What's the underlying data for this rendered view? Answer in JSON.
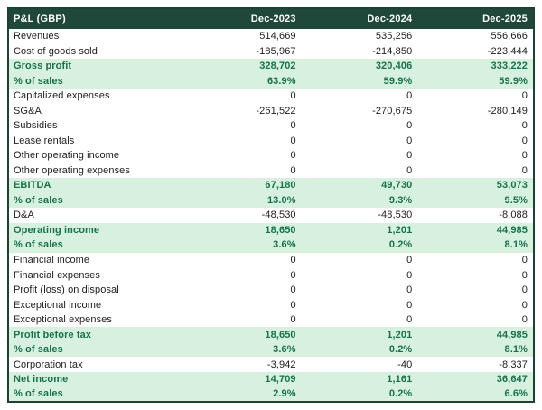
{
  "title": "P&L (GBP)",
  "columns": [
    "Dec-2023",
    "Dec-2024",
    "Dec-2025"
  ],
  "rows": [
    {
      "label": "Revenues",
      "values": [
        "514,669",
        "535,256",
        "556,666"
      ],
      "highlight": false
    },
    {
      "label": "Cost of goods sold",
      "values": [
        "-185,967",
        "-214,850",
        "-223,444"
      ],
      "highlight": false
    },
    {
      "label": "Gross profit",
      "values": [
        "328,702",
        "320,406",
        "333,222"
      ],
      "highlight": true
    },
    {
      "label": "% of sales",
      "values": [
        "63.9%",
        "59.9%",
        "59.9%"
      ],
      "highlight": true
    },
    {
      "label": "Capitalized expenses",
      "values": [
        "0",
        "0",
        "0"
      ],
      "highlight": false
    },
    {
      "label": "SG&A",
      "values": [
        "-261,522",
        "-270,675",
        "-280,149"
      ],
      "highlight": false
    },
    {
      "label": "Subsidies",
      "values": [
        "0",
        "0",
        "0"
      ],
      "highlight": false
    },
    {
      "label": "Lease rentals",
      "values": [
        "0",
        "0",
        "0"
      ],
      "highlight": false
    },
    {
      "label": "Other operating income",
      "values": [
        "0",
        "0",
        "0"
      ],
      "highlight": false
    },
    {
      "label": "Other operating expenses",
      "values": [
        "0",
        "0",
        "0"
      ],
      "highlight": false
    },
    {
      "label": "EBITDA",
      "values": [
        "67,180",
        "49,730",
        "53,073"
      ],
      "highlight": true
    },
    {
      "label": "% of sales",
      "values": [
        "13.0%",
        "9.3%",
        "9.5%"
      ],
      "highlight": true
    },
    {
      "label": "D&A",
      "values": [
        "-48,530",
        "-48,530",
        "-8,088"
      ],
      "highlight": false
    },
    {
      "label": "Operating income",
      "values": [
        "18,650",
        "1,201",
        "44,985"
      ],
      "highlight": true
    },
    {
      "label": "% of sales",
      "values": [
        "3.6%",
        "0.2%",
        "8.1%"
      ],
      "highlight": true
    },
    {
      "label": "Financial income",
      "values": [
        "0",
        "0",
        "0"
      ],
      "highlight": false
    },
    {
      "label": "Financial expenses",
      "values": [
        "0",
        "0",
        "0"
      ],
      "highlight": false
    },
    {
      "label": "Profit (loss) on disposal",
      "values": [
        "0",
        "0",
        "0"
      ],
      "highlight": false
    },
    {
      "label": "Exceptional income",
      "values": [
        "0",
        "0",
        "0"
      ],
      "highlight": false
    },
    {
      "label": "Exceptional expenses",
      "values": [
        "0",
        "0",
        "0"
      ],
      "highlight": false
    },
    {
      "label": "Profit before tax",
      "values": [
        "18,650",
        "1,201",
        "44,985"
      ],
      "highlight": true
    },
    {
      "label": "% of sales",
      "values": [
        "3.6%",
        "0.2%",
        "8.1%"
      ],
      "highlight": true
    },
    {
      "label": "Corporation tax",
      "values": [
        "-3,942",
        "-40",
        "-8,337"
      ],
      "highlight": false
    },
    {
      "label": "Net income",
      "values": [
        "14,709",
        "1,161",
        "36,647"
      ],
      "highlight": true
    },
    {
      "label": "% of sales",
      "values": [
        "2.9%",
        "0.2%",
        "6.6%"
      ],
      "highlight": true
    }
  ],
  "colors": {
    "header_bg": "#20483A",
    "header_text": "#FFFFFF",
    "highlight_bg": "#D8F1DF",
    "highlight_text": "#16714D",
    "border": "#1C4135",
    "row_text": "#1D1D1D",
    "page_bg": "#FFFFFF"
  },
  "chart_data": {
    "type": "table",
    "title": "P&L (GBP)",
    "columns": [
      "Dec-2023",
      "Dec-2024",
      "Dec-2025"
    ],
    "series": [
      {
        "name": "Revenues",
        "values": [
          514669,
          535256,
          556666
        ]
      },
      {
        "name": "Cost of goods sold",
        "values": [
          -185967,
          -214850,
          -223444
        ]
      },
      {
        "name": "Gross profit",
        "values": [
          328702,
          320406,
          333222
        ]
      },
      {
        "name": "Gross profit % of sales",
        "values": [
          63.9,
          59.9,
          59.9
        ]
      },
      {
        "name": "Capitalized expenses",
        "values": [
          0,
          0,
          0
        ]
      },
      {
        "name": "SG&A",
        "values": [
          -261522,
          -270675,
          -280149
        ]
      },
      {
        "name": "Subsidies",
        "values": [
          0,
          0,
          0
        ]
      },
      {
        "name": "Lease rentals",
        "values": [
          0,
          0,
          0
        ]
      },
      {
        "name": "Other operating income",
        "values": [
          0,
          0,
          0
        ]
      },
      {
        "name": "Other operating expenses",
        "values": [
          0,
          0,
          0
        ]
      },
      {
        "name": "EBITDA",
        "values": [
          67180,
          49730,
          53073
        ]
      },
      {
        "name": "EBITDA % of sales",
        "values": [
          13.0,
          9.3,
          9.5
        ]
      },
      {
        "name": "D&A",
        "values": [
          -48530,
          -48530,
          -8088
        ]
      },
      {
        "name": "Operating income",
        "values": [
          18650,
          1201,
          44985
        ]
      },
      {
        "name": "Operating income % of sales",
        "values": [
          3.6,
          0.2,
          8.1
        ]
      },
      {
        "name": "Financial income",
        "values": [
          0,
          0,
          0
        ]
      },
      {
        "name": "Financial expenses",
        "values": [
          0,
          0,
          0
        ]
      },
      {
        "name": "Profit (loss) on disposal",
        "values": [
          0,
          0,
          0
        ]
      },
      {
        "name": "Exceptional income",
        "values": [
          0,
          0,
          0
        ]
      },
      {
        "name": "Exceptional expenses",
        "values": [
          0,
          0,
          0
        ]
      },
      {
        "name": "Profit before tax",
        "values": [
          18650,
          1201,
          44985
        ]
      },
      {
        "name": "Profit before tax % of sales",
        "values": [
          3.6,
          0.2,
          8.1
        ]
      },
      {
        "name": "Corporation tax",
        "values": [
          -3942,
          -40,
          -8337
        ]
      },
      {
        "name": "Net income",
        "values": [
          14709,
          1161,
          36647
        ]
      },
      {
        "name": "Net income % of sales",
        "values": [
          2.9,
          0.2,
          6.6
        ]
      }
    ]
  }
}
